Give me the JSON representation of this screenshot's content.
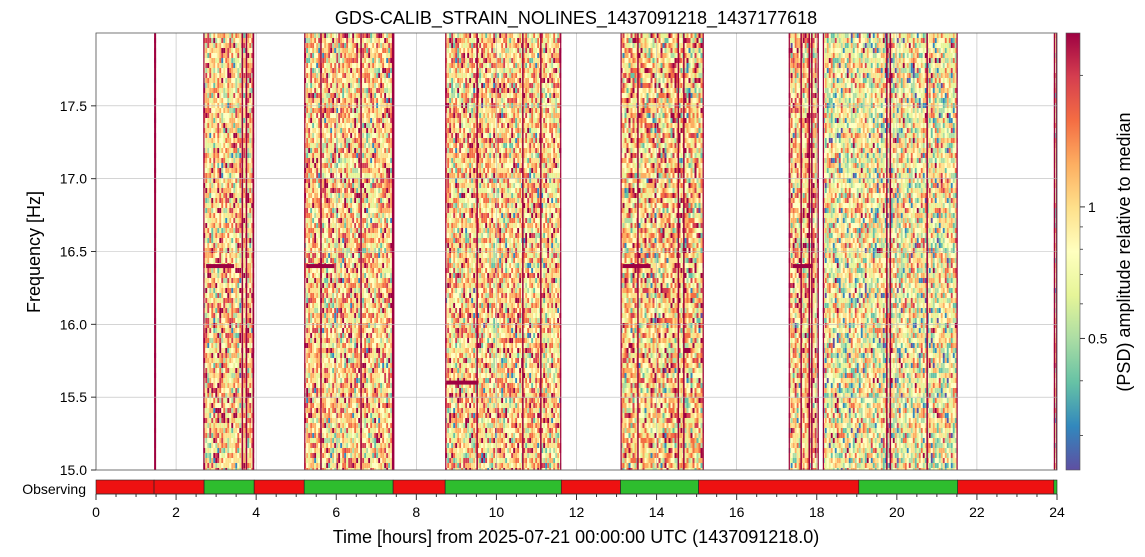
{
  "chart_data": {
    "type": "heatmap",
    "title": "GDS-CALIB_STRAIN_NOLINES_1437091218_1437177618",
    "xlabel": "Time [hours] from 2025-07-21 00:00:00 UTC (1437091218.0)",
    "ylabel": "Frequency [Hz]",
    "colorbar_label": "(PSD) amplitude relative to median",
    "xlim": [
      0,
      24
    ],
    "ylim": [
      15.0,
      18.0
    ],
    "x_ticks": [
      "0",
      "2",
      "4",
      "6",
      "8",
      "10",
      "12",
      "14",
      "16",
      "18",
      "20",
      "22",
      "24"
    ],
    "y_ticks": [
      "15.0",
      "15.5",
      "16.0",
      "16.5",
      "17.0",
      "17.5"
    ],
    "colorbar_ticks": [
      "0.5",
      "1"
    ],
    "colorbar_range": [
      0.25,
      2.5
    ],
    "colorbar_scale": "log",
    "colormap": [
      "#5e4fa2",
      "#3288bd",
      "#66c2a5",
      "#abdda4",
      "#e6f598",
      "#ffffbf",
      "#fee08b",
      "#fdae61",
      "#f46d43",
      "#d53e4f",
      "#9e0142"
    ],
    "grid": true,
    "data_segments_hours": [
      [
        1.45,
        1.5
      ],
      [
        2.68,
        3.95
      ],
      [
        5.2,
        7.42
      ],
      [
        8.72,
        11.62
      ],
      [
        13.1,
        15.18
      ],
      [
        17.3,
        18.05
      ],
      [
        18.15,
        21.52
      ],
      [
        23.92,
        24.0
      ]
    ],
    "persistent_lines": [
      {
        "t_start": 2.75,
        "t_end": 3.45,
        "freq": 16.4
      },
      {
        "t_start": 5.25,
        "t_end": 5.95,
        "freq": 16.4
      },
      {
        "t_start": 13.15,
        "t_end": 13.85,
        "freq": 16.4
      },
      {
        "t_start": 17.4,
        "t_end": 17.9,
        "freq": 16.4
      },
      {
        "t_start": 8.75,
        "t_end": 9.55,
        "freq": 15.6
      }
    ],
    "state_bar": {
      "label": "Observing",
      "colors": {
        "active": "#2ebd2e",
        "inactive": "#ee1111"
      },
      "segments": [
        {
          "start": 0.0,
          "end": 1.45,
          "state": "inactive"
        },
        {
          "start": 1.45,
          "end": 2.7,
          "state": "inactive"
        },
        {
          "start": 2.7,
          "end": 3.95,
          "state": "active"
        },
        {
          "start": 3.95,
          "end": 5.2,
          "state": "inactive"
        },
        {
          "start": 5.2,
          "end": 7.42,
          "state": "active"
        },
        {
          "start": 7.42,
          "end": 8.72,
          "state": "inactive"
        },
        {
          "start": 8.72,
          "end": 11.62,
          "state": "active"
        },
        {
          "start": 11.62,
          "end": 13.1,
          "state": "inactive"
        },
        {
          "start": 13.1,
          "end": 15.05,
          "state": "active"
        },
        {
          "start": 15.05,
          "end": 19.05,
          "state": "inactive"
        },
        {
          "start": 19.05,
          "end": 21.52,
          "state": "active"
        },
        {
          "start": 21.52,
          "end": 23.92,
          "state": "inactive"
        },
        {
          "start": 23.92,
          "end": 24.0,
          "state": "active"
        }
      ]
    }
  }
}
